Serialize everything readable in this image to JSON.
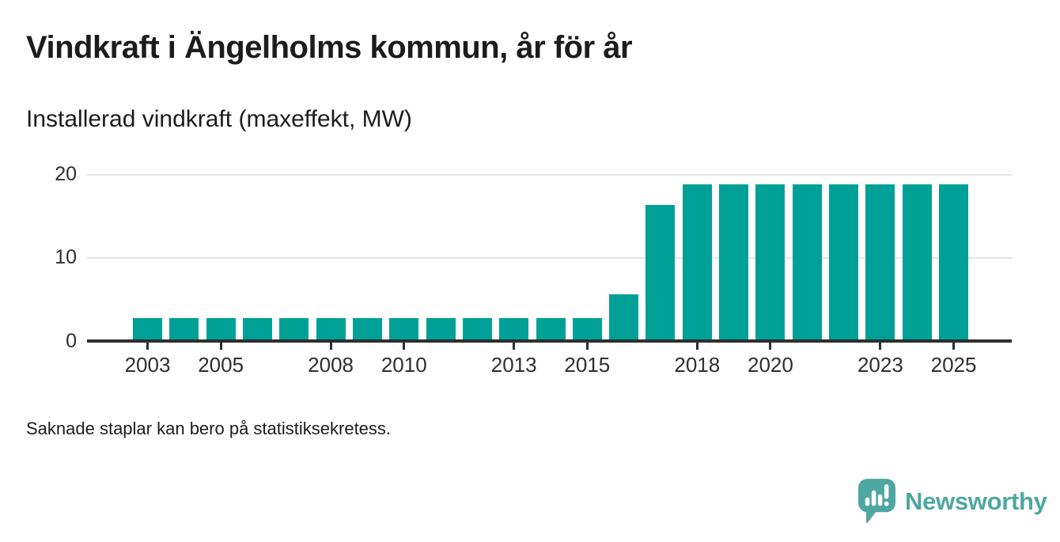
{
  "header": {
    "title": "Vindkraft i Ängelholms kommun, år för år",
    "subtitle": "Installerad vindkraft (maxeffekt, MW)"
  },
  "chart_data": {
    "type": "bar",
    "title": "Vindkraft i Ängelholms kommun, år för år",
    "subtitle": "Installerad vindkraft (maxeffekt, MW)",
    "unit": "MW",
    "categories": [
      2003,
      2004,
      2005,
      2006,
      2007,
      2008,
      2009,
      2010,
      2011,
      2012,
      2013,
      2014,
      2015,
      2016,
      2017,
      2018,
      2019,
      2020,
      2021,
      2022,
      2023,
      2024,
      2025
    ],
    "values": [
      2.8,
      2.8,
      2.8,
      2.8,
      2.8,
      2.8,
      2.8,
      2.8,
      2.8,
      2.8,
      2.8,
      2.8,
      2.8,
      5.6,
      16.3,
      18.8,
      18.8,
      18.8,
      18.8,
      18.8,
      18.8,
      18.8,
      18.8
    ],
    "ylim": [
      0,
      20
    ],
    "yticks": [
      0,
      10,
      20
    ],
    "xtick_years": [
      2003,
      2005,
      2008,
      2010,
      2013,
      2015,
      2018,
      2020,
      2023,
      2025
    ],
    "grid": true,
    "legend_position": "none",
    "bar_color": "#00a096",
    "gridline_color": "#e4e4e4",
    "axis_color": "#2e2e2e"
  },
  "footer": {
    "note": "Saknade staplar kan bero på statistiksekretess."
  },
  "branding": {
    "logo_text": "Newsworthy",
    "logo_color": "#4ea7a1",
    "logo_icon": "newsworthy-speech-bubble-chart-icon"
  }
}
